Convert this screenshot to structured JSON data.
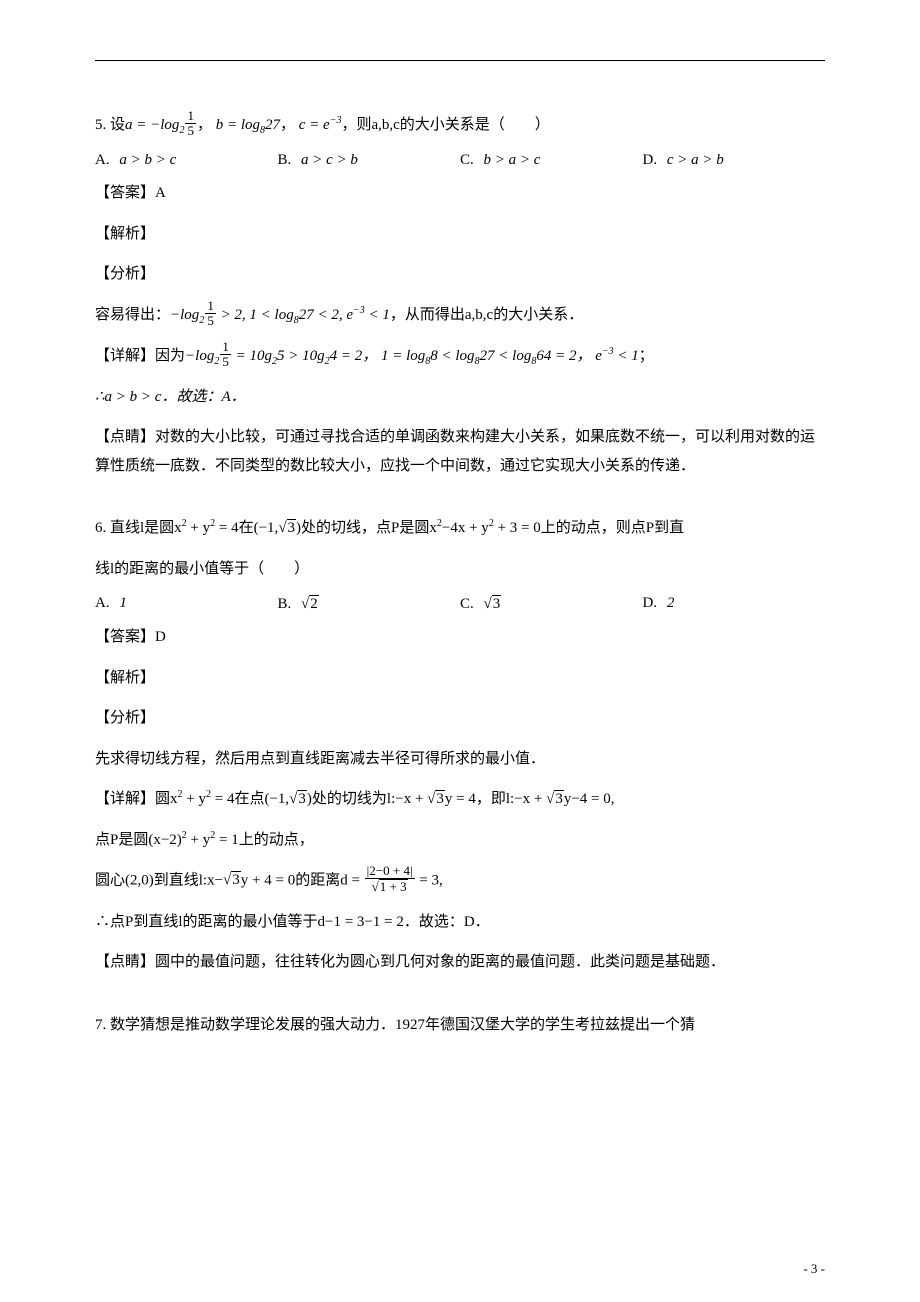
{
  "q5": {
    "label": "5. ",
    "stem_prefix": "设",
    "stem_a": "a = −log",
    "stem_a_base": "2",
    "stem_a_arg_num": "1",
    "stem_a_arg_den": "5",
    "stem_comma1": "，",
    "stem_b": "b = log",
    "stem_b_base": "8",
    "stem_b_arg": "27",
    "stem_comma2": "，",
    "stem_c": "c = e",
    "stem_c_exp": "−3",
    "stem_suffix": "，则a,b,c的大小关系是（　　）",
    "options": {
      "A": "a > b > c",
      "B": "a > c > b",
      "C": "b > a > c",
      "D": "c > a > b"
    },
    "answer_label": "【答案】",
    "answer": "A",
    "jiexi": "【解析】",
    "fenxi": "【分析】",
    "analysis_text_1": "容易得出：",
    "analysis_math_1a": "−log",
    "analysis_math_1a_base": "2",
    "analysis_math_1a_num": "1",
    "analysis_math_1a_den": "5",
    "analysis_math_1a_tail": " > 2, 1 < log",
    "analysis_math_1b_base": "8",
    "analysis_math_1b_arg": "27 < 2, e",
    "analysis_math_1b_exp": "−3",
    "analysis_math_1b_tail": " < 1",
    "analysis_text_1b": "，从而得出a,b,c的大小关系．",
    "detail_label": "【详解】",
    "detail_text_1": "因为",
    "detail_math_1a": "−log",
    "detail_math_1a_base": "2",
    "detail_math_1a_num": "1",
    "detail_math_1a_den": "5",
    "detail_math_1a_eq": " = 1",
    "detail_math_1b": "0g",
    "detail_math_1b_sub": "2",
    "detail_math_1b_tail": "5 > 1",
    "detail_math_1c": "0g",
    "detail_math_1c_sub": "2",
    "detail_math_1c_tail": "4 = 2，",
    "detail_math_2": "1 = log",
    "detail_math_2a_sub": "8",
    "detail_math_2a_tail": "8 < log",
    "detail_math_2b_sub": "8",
    "detail_math_2b_tail": "27 < log",
    "detail_math_2c_sub": "8",
    "detail_math_2c_tail": "64 = 2，",
    "detail_math_3": "e",
    "detail_math_3_exp": "−3",
    "detail_math_3_tail": " < 1",
    "detail_semicolon": "；",
    "conclusion": "∴a > b > c．故选：A．",
    "dianj_label": "【点睛】",
    "dianj_text": "对数的大小比较，可通过寻找合适的单调函数来构建大小关系，如果底数不统一，可以利用对数的运算性质统一底数．不同类型的数比较大小，应找一个中间数，通过它实现大小关系的传递．"
  },
  "q6": {
    "label": "6. ",
    "stem_a": "直线l是圆x",
    "stem_a_exp": "2",
    "stem_b": " + y",
    "stem_b_exp": "2",
    "stem_c": " = 4在(−1,",
    "stem_sqrt3": "3",
    "stem_d": ")处的切线，点P是圆x",
    "stem_d_exp": "2",
    "stem_e": "−4x + y",
    "stem_e_exp": "2",
    "stem_f": " + 3 = 0上的动点，则点P到直",
    "stem_line2": "线l的距离的最小值等于（　　）",
    "options": {
      "A": "1",
      "B_sqrt": "2",
      "C_sqrt": "3",
      "D": "2"
    },
    "answer_label": "【答案】",
    "answer": "D",
    "jiexi": "【解析】",
    "fenxi": "【分析】",
    "analysis_text": "先求得切线方程，然后用点到直线距离减去半径可得所求的最小值．",
    "detail_label": "【详解】",
    "detail_1a": "圆x",
    "detail_1a_exp": "2",
    "detail_1b": " + y",
    "detail_1b_exp": "2",
    "detail_1c": " = 4在点(−1,",
    "detail_1c_sqrt": "3",
    "detail_1d": ")处的切线为l:−x + ",
    "detail_1d_sqrt": "3",
    "detail_1e": "y = 4，即l:−x + ",
    "detail_1e_sqrt": "3",
    "detail_1f": "y−4 = 0,",
    "detail_2a": "点P是圆(x−2)",
    "detail_2a_exp": "2",
    "detail_2b": " + y",
    "detail_2b_exp": "2",
    "detail_2c": " = 1上的动点，",
    "detail_3a": "圆心(2,0)到直线l:x−",
    "detail_3a_sqrt": "3",
    "detail_3b": "y + 4 = 0的距离d = ",
    "detail_3_num": "|2−0 + 4|",
    "detail_3_den_sqrt": "1 + 3",
    "detail_3c": " = 3,",
    "detail_4": "∴点P到直线l的距离的最小值等于d−1 = 3−1 = 2．故选：D．",
    "dianj_label": "【点睛】",
    "dianj_text": "圆中的最值问题，往往转化为圆心到几何对象的距离的最值问题．此类问题是基础题．"
  },
  "q7": {
    "label": "7. ",
    "stem": "数学猜想是推动数学理论发展的强大动力．1927年德国汉堡大学的学生考拉兹提出一个猜"
  },
  "page_number": "- 3 -"
}
